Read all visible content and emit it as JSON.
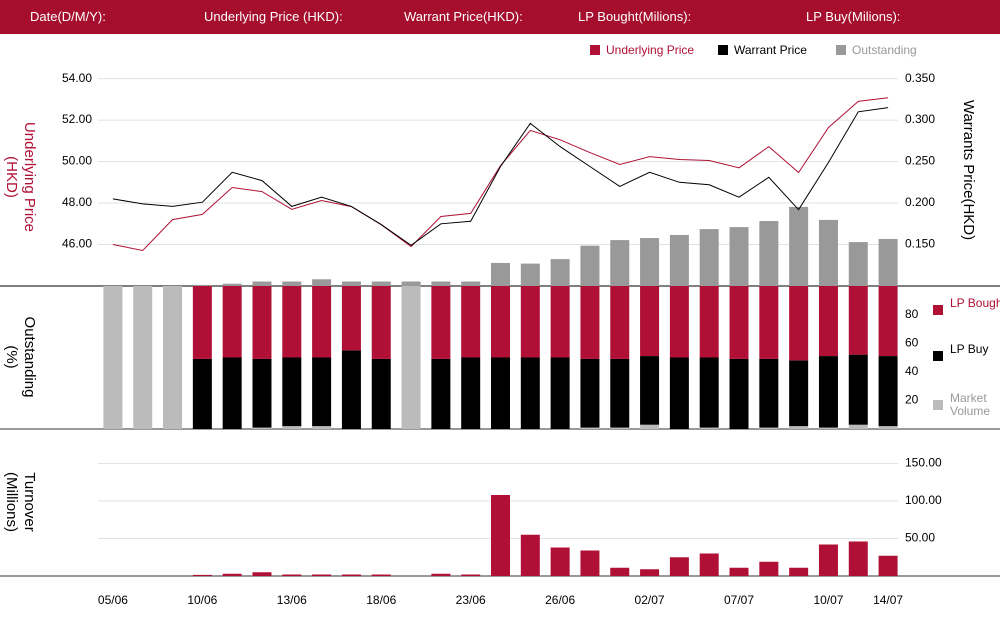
{
  "header": {
    "labels": [
      "Date(D/M/Y):",
      "Underlying Price (HKD):",
      "Warrant  Price(HKD):",
      "LP Bought(Milions):",
      "LP Buy(Milions):"
    ]
  },
  "chart_data": [
    {
      "type": "line",
      "y_label": "Underlying Price (HKD)",
      "y2_label": "Warrants  Price(HKD)",
      "ylim": [
        44,
        54.8
      ],
      "yticks": [
        {
          "value": 46,
          "label": "46.00"
        },
        {
          "value": 48,
          "label": "48.00"
        },
        {
          "value": 50,
          "label": "50.00"
        },
        {
          "value": 52,
          "label": "52.00"
        },
        {
          "value": 54,
          "label": "54.00"
        }
      ],
      "y2lim": [
        0.1,
        0.37
      ],
      "y2ticks": [
        {
          "value": 0.15,
          "label": "0.150"
        },
        {
          "value": 0.2,
          "label": "0.200"
        },
        {
          "value": 0.25,
          "label": "0.250"
        },
        {
          "value": 0.3,
          "label": "0.300"
        },
        {
          "value": 0.35,
          "label": "0.350"
        }
      ],
      "y3lim": [
        0,
        100
      ],
      "grid": true,
      "series": [
        {
          "name": "Underlying Price",
          "color": "#b01035",
          "axis": "y",
          "values": [
            46.0,
            45.71,
            47.2,
            47.45,
            48.75,
            48.55,
            47.7,
            48.12,
            47.83,
            46.96,
            45.9,
            47.35,
            47.5,
            49.8,
            51.5,
            51.05,
            50.43,
            49.86,
            50.24,
            50.1,
            50.05,
            49.7,
            50.72,
            49.47,
            51.64,
            52.9,
            53.08
          ]
        },
        {
          "name": "Warrant  Price",
          "color": "#000000",
          "axis": "y2",
          "values": [
            0.205,
            0.199,
            0.196,
            0.201,
            0.237,
            0.227,
            0.196,
            0.207,
            0.196,
            0.174,
            0.149,
            0.175,
            0.178,
            0.244,
            0.296,
            0.268,
            0.244,
            0.22,
            0.237,
            0.225,
            0.222,
            0.207,
            0.231,
            0.192,
            0.249,
            0.31,
            0.315
          ]
        },
        {
          "name": "Outstanding",
          "color": "#999999",
          "axis": "y3",
          "type": "bar",
          "values": [
            0,
            0,
            0,
            0.5,
            1,
            2,
            2,
            3,
            2,
            2,
            2,
            2,
            2,
            10.3,
            10,
            12,
            18,
            20.5,
            21.4,
            22.8,
            25.4,
            26.3,
            29,
            35.3,
            29.5,
            19.6,
            21
          ]
        }
      ]
    },
    {
      "type": "stacked_bar",
      "y_label": "Outstanding (%)",
      "ylim": [
        0,
        100
      ],
      "yticks": [
        20,
        40,
        60,
        80
      ],
      "series": [
        {
          "name": "LP Bought",
          "color": "#b01035",
          "values": [
            0,
            0,
            0,
            51,
            50,
            51,
            50,
            50,
            45,
            51,
            0,
            51,
            50,
            50,
            50,
            50,
            51,
            51,
            49,
            50,
            50,
            51,
            51,
            52,
            49,
            48,
            49
          ]
        },
        {
          "name": "LP Buy",
          "color": "#000000",
          "values": [
            0,
            0,
            0,
            49,
            50,
            48,
            48,
            48,
            55,
            49,
            0,
            49,
            50,
            50,
            50,
            50,
            48,
            48,
            48,
            50,
            49,
            49,
            48,
            46,
            50,
            49,
            49
          ]
        },
        {
          "name": "Market Volume",
          "color": "#bbbbbb",
          "values": [
            100,
            100,
            100,
            0,
            0,
            1,
            2,
            2,
            0,
            0,
            100,
            0,
            0,
            0,
            0,
            0,
            1,
            1,
            3,
            0,
            1,
            0,
            1,
            2,
            1,
            3,
            2
          ]
        }
      ]
    },
    {
      "type": "bar",
      "y_label": "Turnover (Millions)",
      "categories": [
        "05/06",
        null,
        null,
        "10/06",
        null,
        null,
        "13/06",
        null,
        null,
        "18/06",
        null,
        null,
        "23/06",
        null,
        null,
        "26/06",
        null,
        null,
        "02/07",
        null,
        null,
        "07/07",
        null,
        null,
        "10/07",
        null,
        "14/07"
      ],
      "values": [
        0,
        0,
        0,
        1.5,
        3,
        5,
        2,
        2,
        2,
        2,
        0,
        3,
        2,
        108,
        55,
        38,
        34,
        11,
        9,
        25,
        30,
        11,
        19,
        11,
        42,
        46,
        27
      ],
      "color": "#b01035",
      "ylim": [
        0,
        180
      ],
      "yticks": [
        {
          "value": 50,
          "label": "50.00"
        },
        {
          "value": 100,
          "label": "100.00"
        },
        {
          "value": 150,
          "label": "150.00"
        }
      ],
      "grid": true
    }
  ]
}
